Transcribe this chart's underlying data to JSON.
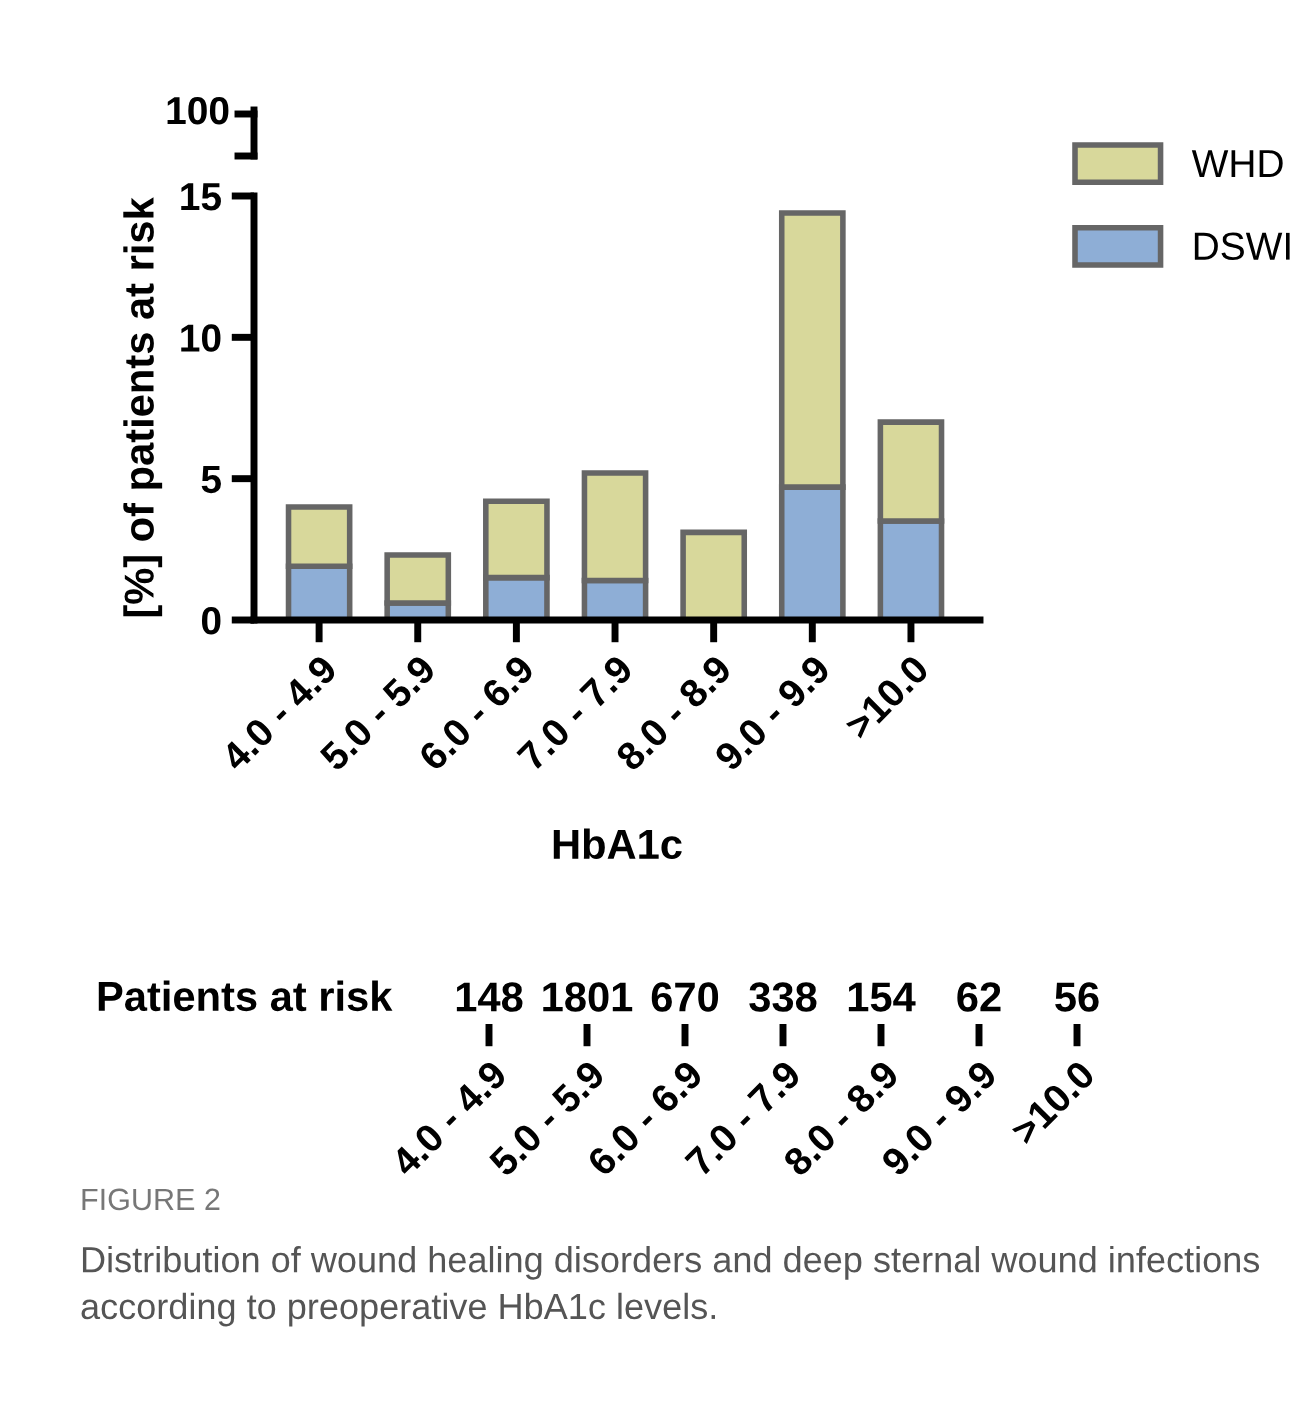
{
  "chart_data": [
    {
      "type": "bar",
      "stacked": true,
      "xlabel": "HbA1c",
      "ylabel": "[%] of patients at risk",
      "categories": [
        "4.0 - 4.9",
        "5.0 - 5.9",
        "6.0 - 6.9",
        "7.0 - 7.9",
        "8.0 - 8.9",
        "9.0 - 9.9",
        ">10.0"
      ],
      "series": [
        {
          "name": "DSWI",
          "color": "#8eaed6",
          "values": [
            1.9,
            0.6,
            1.5,
            1.4,
            0,
            4.7,
            3.5
          ]
        },
        {
          "name": "WHD",
          "color": "#d8d89b",
          "values": [
            2.1,
            1.7,
            2.7,
            3.8,
            3.1,
            9.7,
            3.5
          ]
        }
      ],
      "ylim": [
        0,
        15
      ],
      "yticks": [
        0,
        5,
        10,
        15
      ],
      "grid": false,
      "legend": "top right",
      "annotations": [
        "100",
        "FIGURE 2",
        "Distribution of wound healing disorders and deep sternal wound infections according to preoperative HbA1c levels."
      ]
    },
    {
      "type": "other",
      "title": "Patients at risk",
      "categories": [
        "4.0 - 4.9",
        "5.0 - 5.9",
        "6.0 - 6.9",
        "7.0 - 7.9",
        "8.0 - 8.9",
        "9.0 - 9.9",
        ">10.0"
      ],
      "values": [
        148,
        1801,
        670,
        338,
        154,
        62,
        56
      ],
      "data_labels": true
    }
  ]
}
